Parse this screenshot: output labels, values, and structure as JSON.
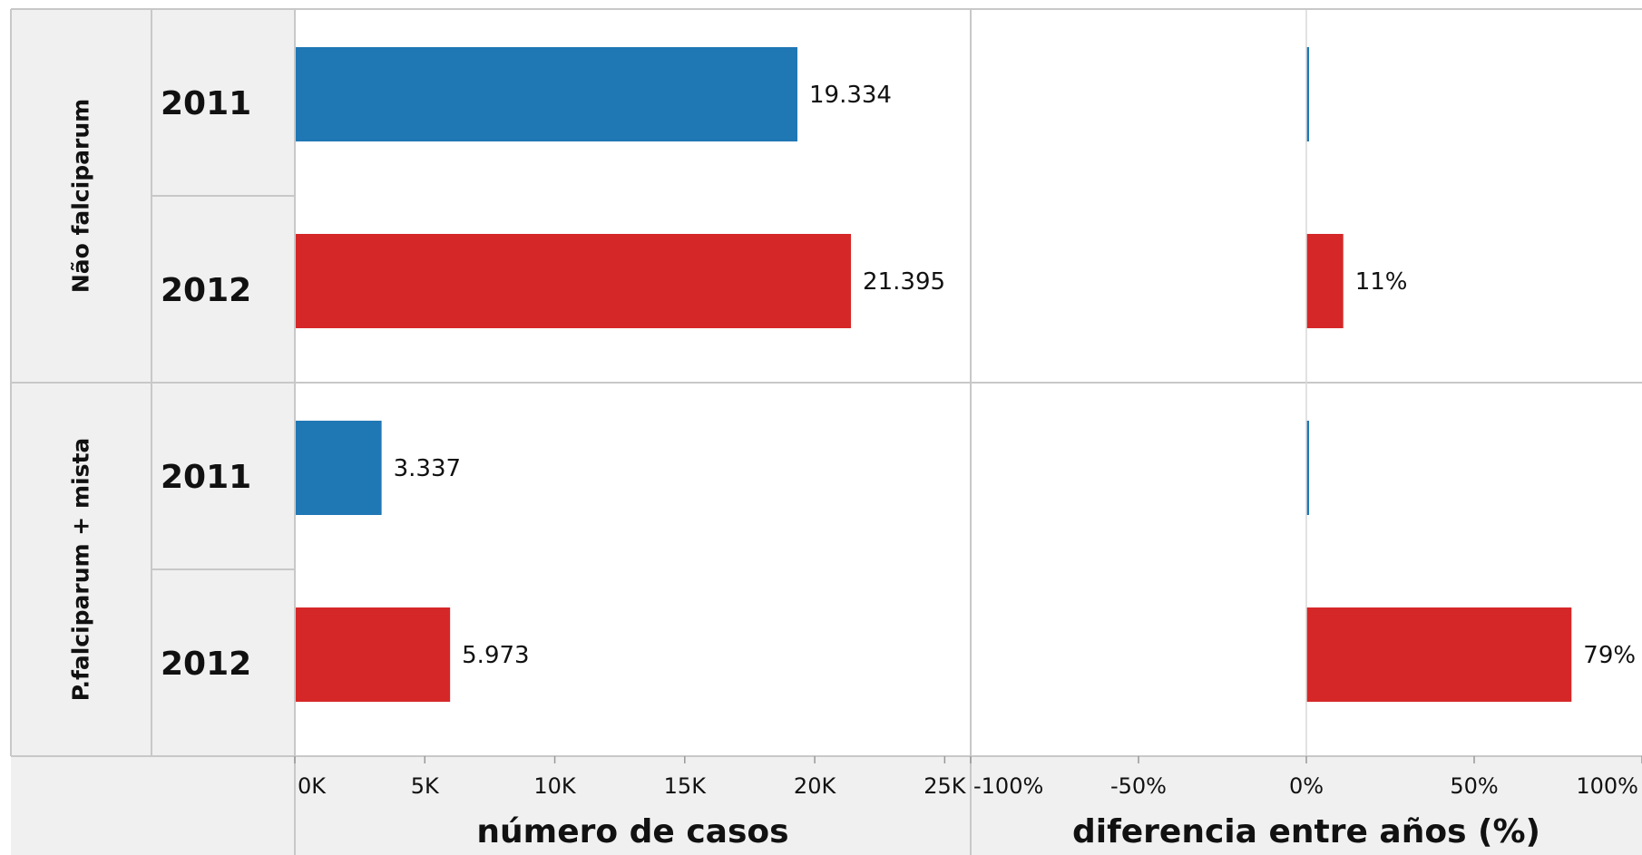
{
  "chart_data": {
    "type": "bar",
    "orientation": "horizontal",
    "groups": [
      {
        "name": "Não falciparum",
        "rows": [
          {
            "year": "2011",
            "cases": 19334,
            "cases_label": "19.334",
            "diff_pct": 0,
            "diff_label": ""
          },
          {
            "year": "2012",
            "cases": 21395,
            "cases_label": "21.395",
            "diff_pct": 11,
            "diff_label": "11%"
          }
        ]
      },
      {
        "name": "P.falciparum + mista",
        "rows": [
          {
            "year": "2011",
            "cases": 3337,
            "cases_label": "3.337",
            "diff_pct": 0,
            "diff_label": ""
          },
          {
            "year": "2012",
            "cases": 5973,
            "cases_label": "5.973",
            "diff_pct": 79,
            "diff_label": "79%"
          }
        ]
      }
    ],
    "panels": [
      {
        "measure": "cases",
        "xlabel": "número de casos",
        "xlim": [
          0,
          26000
        ],
        "ticks": [
          0,
          5000,
          10000,
          15000,
          20000,
          25000
        ],
        "tick_labels": [
          "0K",
          "5K",
          "10K",
          "15K",
          "20K",
          "25K"
        ]
      },
      {
        "measure": "diff_pct",
        "xlabel": "diferencia entre años (%)",
        "xlim": [
          -100,
          100
        ],
        "ticks": [
          -100,
          -50,
          0,
          50,
          100
        ],
        "tick_labels": [
          "-100%",
          "-50%",
          "0%",
          "50%",
          "100%"
        ]
      }
    ],
    "colors": {
      "2011": "#1f77b4",
      "2012": "#d62728"
    },
    "header_fill": "#f0f0f0",
    "grid_color": "#c8c8c8"
  }
}
